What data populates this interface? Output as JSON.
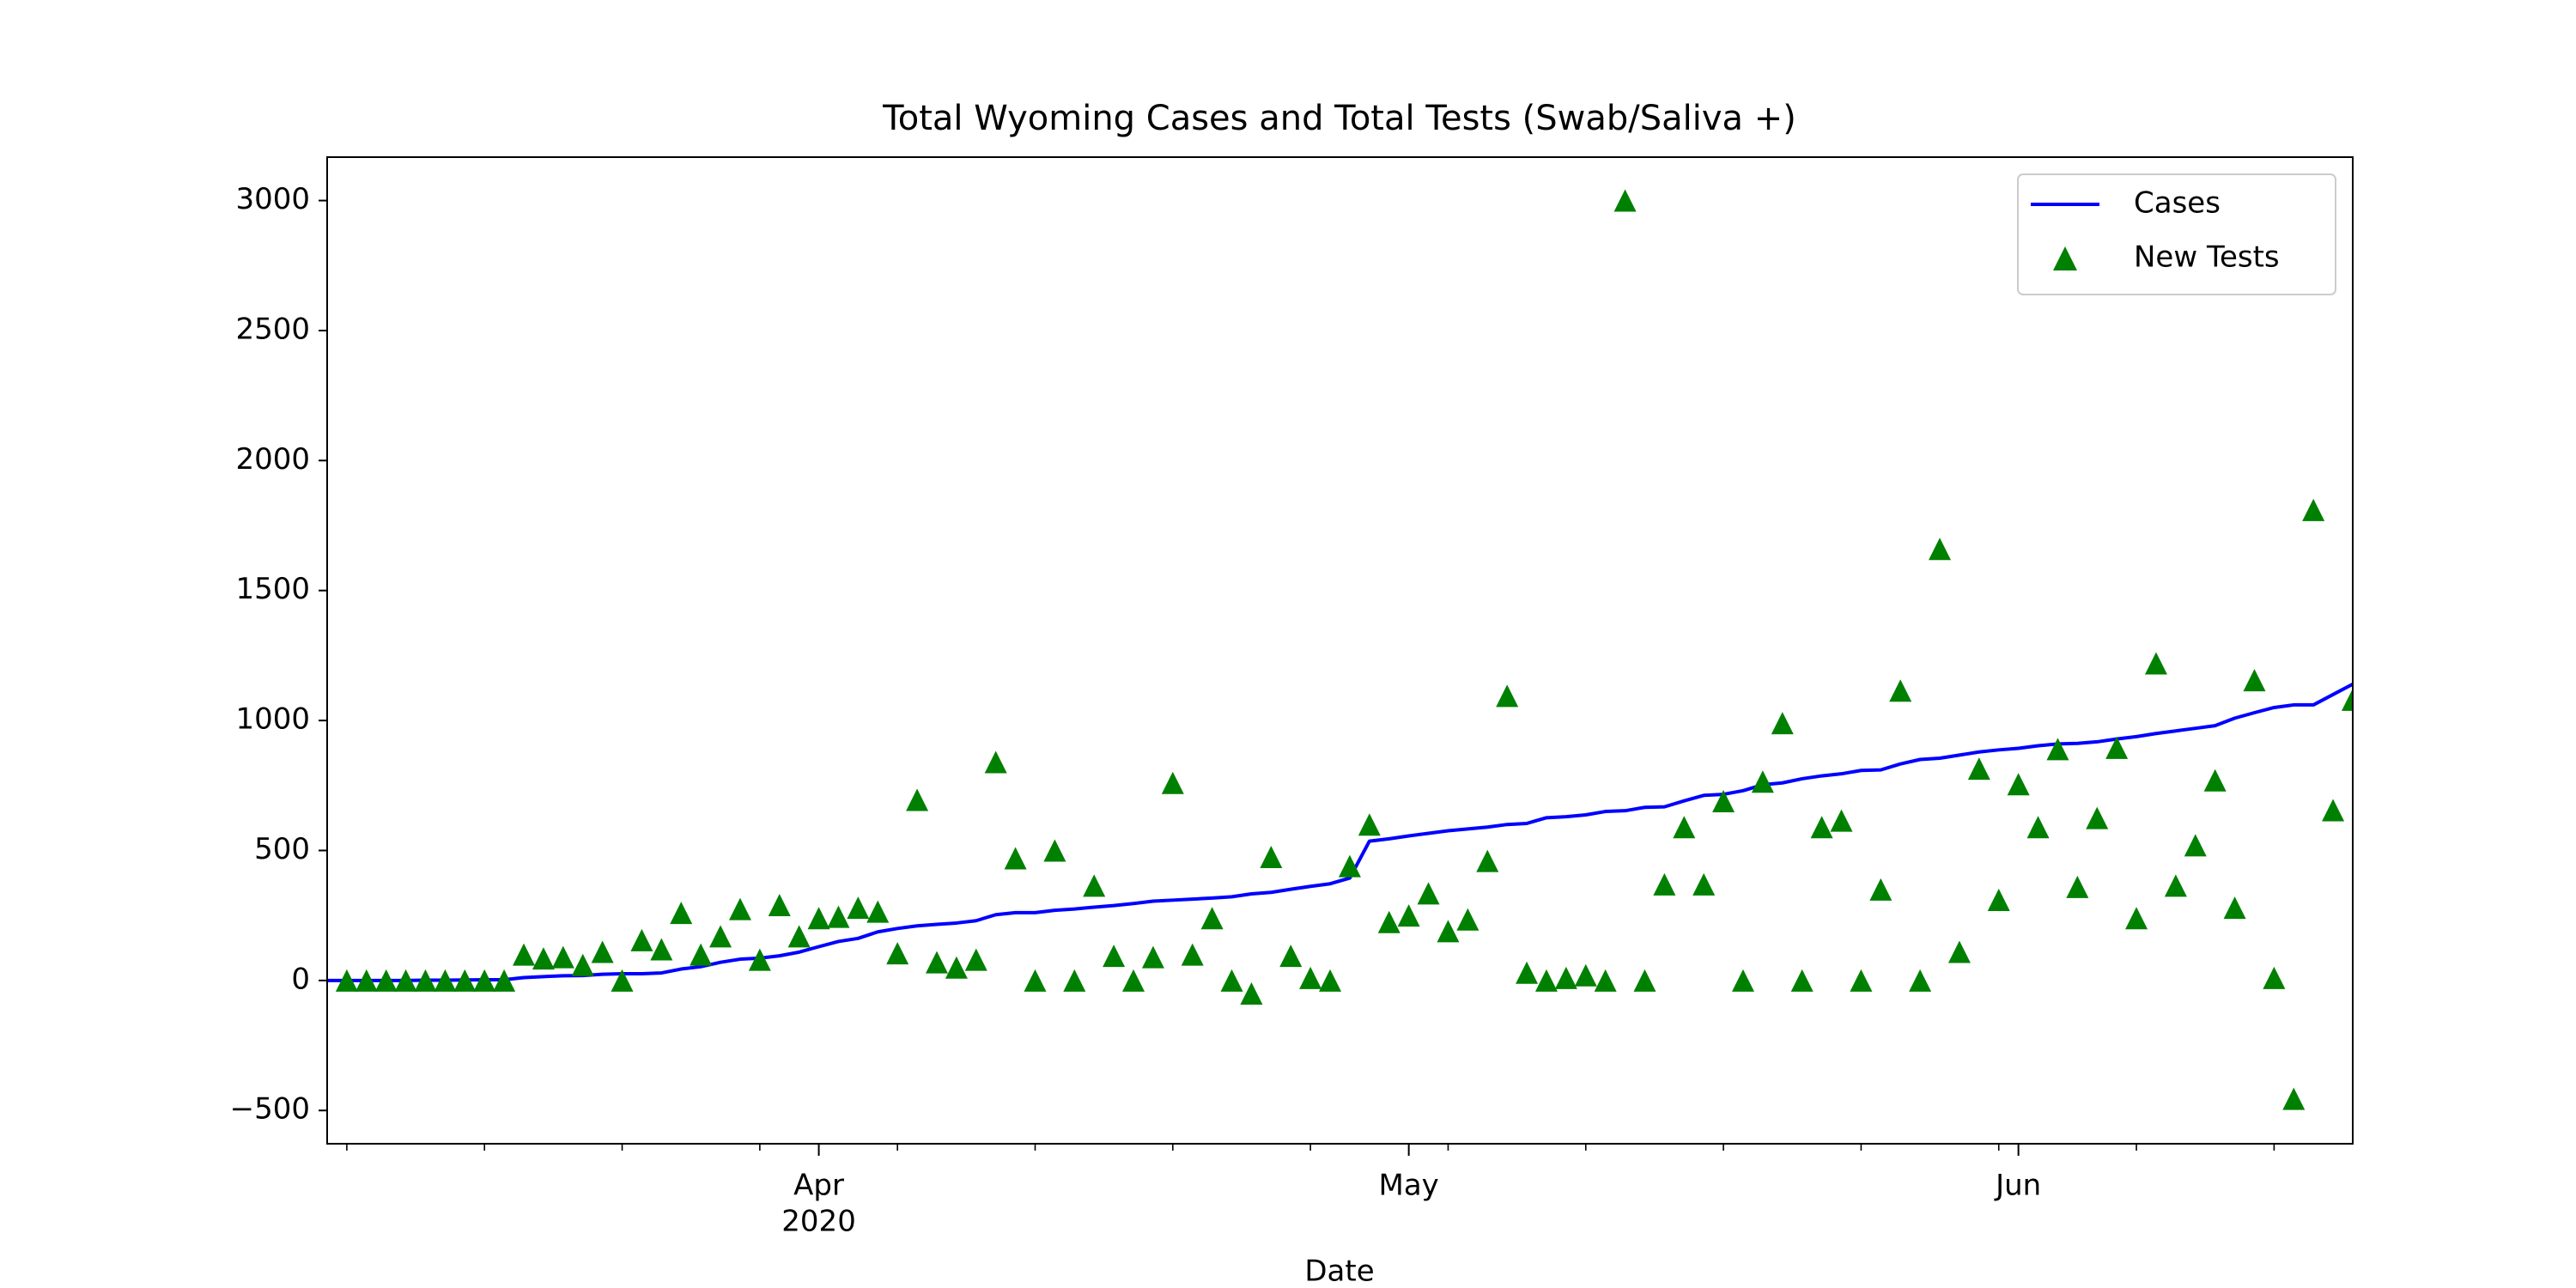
{
  "chart_data": {
    "type": "line",
    "title": "Total Wyoming Cases and Total Tests (Swab/Saliva +)",
    "xlabel": "Date",
    "x": [
      "2020-03-07",
      "2020-03-08",
      "2020-03-09",
      "2020-03-10",
      "2020-03-11",
      "2020-03-12",
      "2020-03-13",
      "2020-03-14",
      "2020-03-15",
      "2020-03-16",
      "2020-03-17",
      "2020-03-18",
      "2020-03-19",
      "2020-03-20",
      "2020-03-21",
      "2020-03-22",
      "2020-03-23",
      "2020-03-24",
      "2020-03-25",
      "2020-03-26",
      "2020-03-27",
      "2020-03-28",
      "2020-03-29",
      "2020-03-30",
      "2020-03-31",
      "2020-04-01",
      "2020-04-02",
      "2020-04-03",
      "2020-04-04",
      "2020-04-05",
      "2020-04-06",
      "2020-04-07",
      "2020-04-08",
      "2020-04-09",
      "2020-04-10",
      "2020-04-11",
      "2020-04-12",
      "2020-04-13",
      "2020-04-14",
      "2020-04-15",
      "2020-04-16",
      "2020-04-17",
      "2020-04-18",
      "2020-04-19",
      "2020-04-20",
      "2020-04-21",
      "2020-04-22",
      "2020-04-23",
      "2020-04-24",
      "2020-04-25",
      "2020-04-26",
      "2020-04-27",
      "2020-04-28",
      "2020-04-29",
      "2020-04-30",
      "2020-05-01",
      "2020-05-02",
      "2020-05-03",
      "2020-05-04",
      "2020-05-05",
      "2020-05-06",
      "2020-05-07",
      "2020-05-08",
      "2020-05-09",
      "2020-05-10",
      "2020-05-11",
      "2020-05-12",
      "2020-05-13",
      "2020-05-14",
      "2020-05-15",
      "2020-05-16",
      "2020-05-17",
      "2020-05-18",
      "2020-05-19",
      "2020-05-20",
      "2020-05-21",
      "2020-05-22",
      "2020-05-23",
      "2020-05-24",
      "2020-05-25",
      "2020-05-26",
      "2020-05-27",
      "2020-05-28",
      "2020-05-29",
      "2020-05-30",
      "2020-05-31",
      "2020-06-01",
      "2020-06-02",
      "2020-06-03",
      "2020-06-04",
      "2020-06-05",
      "2020-06-06",
      "2020-06-07",
      "2020-06-08",
      "2020-06-09",
      "2020-06-10",
      "2020-06-11",
      "2020-06-12",
      "2020-06-13",
      "2020-06-14",
      "2020-06-15",
      "2020-06-16",
      "2020-06-17",
      "2020-06-18"
    ],
    "series": [
      {
        "name": "Cases",
        "type": "line",
        "color": "#0000ff",
        "values": [
          0,
          0,
          0,
          0,
          0,
          1,
          1,
          2,
          3,
          3,
          11,
          15,
          18,
          19,
          24,
          26,
          26,
          29,
          44,
          53,
          70,
          82,
          86,
          95,
          109,
          130,
          150,
          162,
          187,
          200,
          210,
          216,
          221,
          230,
          253,
          261,
          261,
          270,
          275,
          282,
          288,
          296,
          305,
          309,
          313,
          317,
          322,
          333,
          339,
          351,
          362,
          372,
          394,
          536,
          545,
          556,
          566,
          576,
          583,
          590,
          600,
          604,
          626,
          630,
          637,
          650,
          653,
          666,
          668,
          691,
          712,
          716,
          730,
          753,
          760,
          776,
          787,
          795,
          808,
          810,
          833,
          850,
          855,
          867,
          879,
          887,
          893,
          903,
          910,
          912,
          918,
          929,
          938,
          950,
          960,
          970,
          980,
          1009,
          1030,
          1050,
          1060,
          1060,
          1100,
          1140
        ]
      },
      {
        "name": "New Tests",
        "type": "scatter",
        "color": "#008000",
        "values": [
          null,
          0,
          0,
          0,
          0,
          0,
          0,
          0,
          0,
          0,
          100,
          85,
          90,
          60,
          110,
          0,
          155,
          120,
          260,
          100,
          170,
          275,
          80,
          290,
          170,
          240,
          245,
          280,
          265,
          105,
          695,
          70,
          50,
          80,
          840,
          470,
          0,
          500,
          0,
          365,
          95,
          0,
          90,
          760,
          100,
          240,
          0,
          -50,
          475,
          95,
          10,
          0,
          440,
          600,
          225,
          250,
          335,
          190,
          235,
          460,
          1095,
          30,
          0,
          10,
          20,
          0,
          3000,
          0,
          370,
          590,
          370,
          690,
          0,
          765,
          990,
          0,
          590,
          615,
          0,
          350,
          1115,
          0,
          1660,
          110,
          815,
          310,
          755,
          590,
          890,
          360,
          625,
          895,
          240,
          1220,
          365,
          520,
          770,
          280,
          1155,
          10,
          -455,
          1810,
          655,
          1080
        ]
      }
    ],
    "xlim": [
      "2020-03-07",
      "2020-06-18"
    ],
    "xticks": [
      {
        "value": "2020-04-01",
        "label": "Apr",
        "sublabel": "2020"
      },
      {
        "value": "2020-05-01",
        "label": "May"
      },
      {
        "value": "2020-06-01",
        "label": "Jun"
      }
    ],
    "xminorticks": [
      "2020-03-08",
      "2020-03-15",
      "2020-03-22",
      "2020-03-29",
      "2020-04-05",
      "2020-04-12",
      "2020-04-19",
      "2020-04-26",
      "2020-05-03",
      "2020-05-10",
      "2020-05-17",
      "2020-05-24",
      "2020-05-31",
      "2020-06-07",
      "2020-06-14"
    ],
    "ylim": [
      -628,
      3167
    ],
    "yticks": [
      {
        "value": -500,
        "label": "−500"
      },
      0,
      500,
      1000,
      1500,
      2000,
      2500,
      3000
    ],
    "legend": "upper right"
  }
}
